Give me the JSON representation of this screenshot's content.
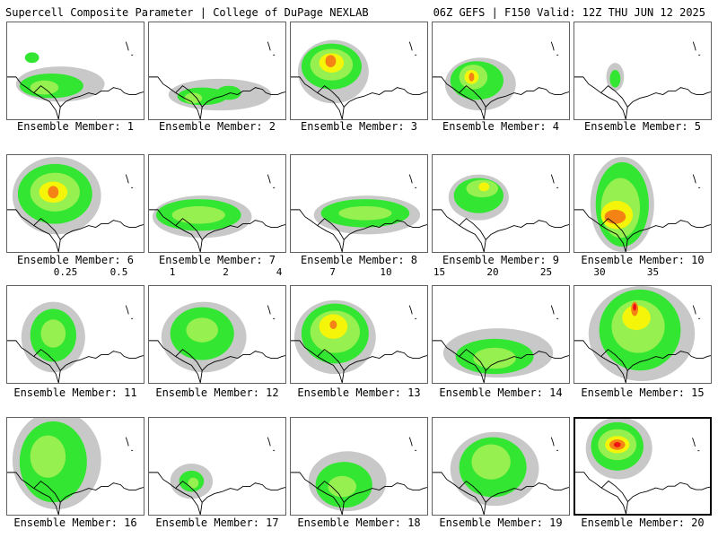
{
  "header": {
    "title_left": "Supercell Composite Parameter | College of DuPage NEXLAB",
    "title_right": "06Z GEFS | F150 Valid: 12Z THU JUN 12 2025"
  },
  "legend": {
    "thresholds": [
      "0.25",
      "0.5",
      "1",
      "2",
      "4",
      "7",
      "10",
      "15",
      "20",
      "25",
      "30",
      "35"
    ],
    "colors": [
      "#c8c8c8",
      "#32e632",
      "#96f050",
      "#f5f50a",
      "#f58214",
      "#f01414",
      "#e61482",
      "#f01ee6",
      "#e62ee6",
      "#8c14dc",
      "#b478e6",
      "#32e6f0"
    ]
  },
  "colors": {
    "light": "#c8c8c8",
    "green": "#32e632",
    "yellowgreen": "#96f050",
    "yellow": "#f5f50a",
    "orange": "#f58214",
    "red": "#f01414"
  },
  "members": [
    {
      "label": "Ensemble Member: 1",
      "selected": false
    },
    {
      "label": "Ensemble Member: 2",
      "selected": false
    },
    {
      "label": "Ensemble Member: 3",
      "selected": false
    },
    {
      "label": "Ensemble Member: 4",
      "selected": false
    },
    {
      "label": "Ensemble Member: 5",
      "selected": false
    },
    {
      "label": "Ensemble Member: 6",
      "selected": false
    },
    {
      "label": "Ensemble Member: 7",
      "selected": false
    },
    {
      "label": "Ensemble Member: 8",
      "selected": false
    },
    {
      "label": "Ensemble Member: 9",
      "selected": false
    },
    {
      "label": "Ensemble Member: 10",
      "selected": false
    },
    {
      "label": "Ensemble Member: 11",
      "selected": false
    },
    {
      "label": "Ensemble Member: 12",
      "selected": false
    },
    {
      "label": "Ensemble Member: 13",
      "selected": false
    },
    {
      "label": "Ensemble Member: 14",
      "selected": false
    },
    {
      "label": "Ensemble Member: 15",
      "selected": false
    },
    {
      "label": "Ensemble Member: 16",
      "selected": false
    },
    {
      "label": "Ensemble Member: 17",
      "selected": false
    },
    {
      "label": "Ensemble Member: 18",
      "selected": false
    },
    {
      "label": "Ensemble Member: 19",
      "selected": false
    },
    {
      "label": "Ensemble Member: 20",
      "selected": true
    }
  ]
}
